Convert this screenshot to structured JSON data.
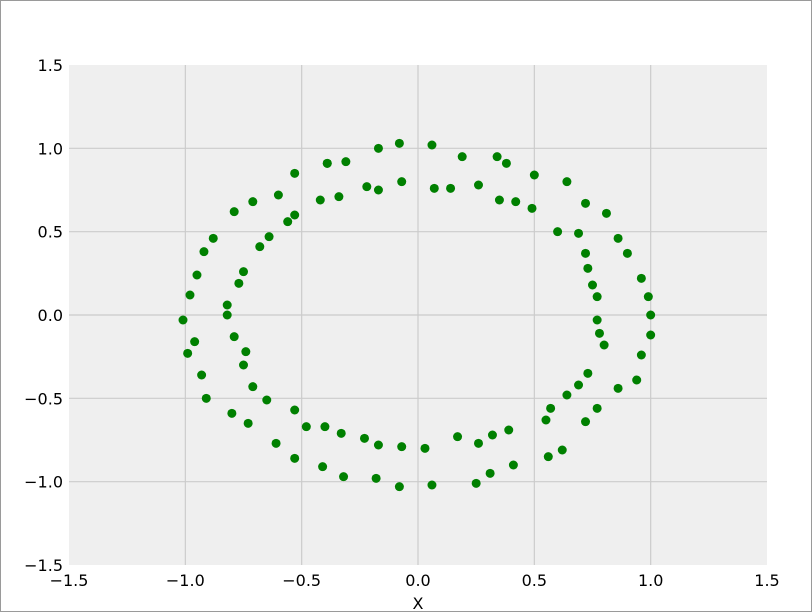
{
  "chart_data": {
    "type": "scatter",
    "title": "",
    "xlabel": "X",
    "ylabel": "",
    "xlim": [
      -1.5,
      1.5
    ],
    "ylim": [
      -1.5,
      1.5
    ],
    "grid": true,
    "legend": "none",
    "x_ticks": [
      "−1.5",
      "−1.0",
      "−0.5",
      "0.0",
      "0.5",
      "1.0",
      "1.5"
    ],
    "y_ticks": [
      "−1.5",
      "−1.0",
      "−0.5",
      "0.0",
      "0.5",
      "1.0",
      "1.5"
    ],
    "colors": {
      "point": "#008000",
      "plot_background": "#efefef",
      "grid": "#cbcbcb"
    },
    "series": [
      {
        "points": [
          [
            -0.08,
            1.03
          ],
          [
            0.06,
            1.02
          ],
          [
            0.19,
            0.95
          ],
          [
            -0.17,
            1.0
          ],
          [
            -0.31,
            0.92
          ],
          [
            -0.39,
            0.91
          ],
          [
            -0.53,
            0.85
          ],
          [
            -0.6,
            0.72
          ],
          [
            -0.79,
            0.62
          ],
          [
            -0.71,
            0.68
          ],
          [
            -0.88,
            0.46
          ],
          [
            -0.92,
            0.38
          ],
          [
            -0.95,
            0.24
          ],
          [
            -0.98,
            0.12
          ],
          [
            -1.01,
            -0.03
          ],
          [
            -0.99,
            -0.23
          ],
          [
            -0.96,
            -0.16
          ],
          [
            -0.93,
            -0.36
          ],
          [
            -0.91,
            -0.5
          ],
          [
            -0.8,
            -0.59
          ],
          [
            -0.73,
            -0.65
          ],
          [
            -0.61,
            -0.77
          ],
          [
            -0.53,
            -0.86
          ],
          [
            -0.41,
            -0.91
          ],
          [
            -0.32,
            -0.97
          ],
          [
            -0.18,
            -0.98
          ],
          [
            -0.08,
            -1.03
          ],
          [
            0.06,
            -1.02
          ],
          [
            0.25,
            -1.01
          ],
          [
            0.31,
            -0.95
          ],
          [
            0.41,
            -0.9
          ],
          [
            0.56,
            -0.85
          ],
          [
            0.62,
            -0.81
          ],
          [
            0.72,
            -0.64
          ],
          [
            0.77,
            -0.56
          ],
          [
            0.86,
            -0.44
          ],
          [
            0.94,
            -0.39
          ],
          [
            0.96,
            -0.24
          ],
          [
            1.0,
            -0.12
          ],
          [
            1.0,
            0.0
          ],
          [
            0.99,
            0.11
          ],
          [
            0.96,
            0.22
          ],
          [
            0.9,
            0.37
          ],
          [
            0.86,
            0.46
          ],
          [
            0.81,
            0.61
          ],
          [
            0.72,
            0.67
          ],
          [
            0.64,
            0.8
          ],
          [
            0.5,
            0.84
          ],
          [
            0.34,
            0.95
          ],
          [
            0.38,
            0.91
          ]
        ]
      },
      {
        "points": [
          [
            -0.07,
            0.8
          ],
          [
            0.07,
            0.76
          ],
          [
            0.14,
            0.76
          ],
          [
            0.26,
            0.78
          ],
          [
            0.35,
            0.69
          ],
          [
            0.42,
            0.68
          ],
          [
            0.49,
            0.64
          ],
          [
            0.6,
            0.5
          ],
          [
            0.69,
            0.49
          ],
          [
            0.72,
            0.37
          ],
          [
            0.73,
            0.28
          ],
          [
            0.75,
            0.18
          ],
          [
            0.77,
            0.11
          ],
          [
            0.77,
            -0.03
          ],
          [
            0.78,
            -0.11
          ],
          [
            0.8,
            -0.18
          ],
          [
            0.73,
            -0.35
          ],
          [
            0.69,
            -0.42
          ],
          [
            0.64,
            -0.48
          ],
          [
            0.57,
            -0.56
          ],
          [
            0.55,
            -0.63
          ],
          [
            0.39,
            -0.69
          ],
          [
            0.32,
            -0.72
          ],
          [
            0.26,
            -0.77
          ],
          [
            0.17,
            -0.73
          ],
          [
            0.03,
            -0.8
          ],
          [
            -0.07,
            -0.79
          ],
          [
            -0.17,
            -0.78
          ],
          [
            -0.23,
            -0.74
          ],
          [
            -0.33,
            -0.71
          ],
          [
            -0.4,
            -0.67
          ],
          [
            -0.48,
            -0.67
          ],
          [
            -0.53,
            -0.57
          ],
          [
            -0.65,
            -0.51
          ],
          [
            -0.71,
            -0.43
          ],
          [
            -0.75,
            -0.3
          ],
          [
            -0.74,
            -0.22
          ],
          [
            -0.79,
            -0.13
          ],
          [
            -0.82,
            0.0
          ],
          [
            -0.82,
            0.06
          ],
          [
            -0.77,
            0.19
          ],
          [
            -0.75,
            0.26
          ],
          [
            -0.68,
            0.41
          ],
          [
            -0.64,
            0.47
          ],
          [
            -0.56,
            0.56
          ],
          [
            -0.53,
            0.6
          ],
          [
            -0.42,
            0.69
          ],
          [
            -0.34,
            0.71
          ],
          [
            -0.22,
            0.77
          ],
          [
            -0.17,
            0.75
          ],
          [
            -0.39,
            0.91
          ]
        ]
      }
    ]
  }
}
